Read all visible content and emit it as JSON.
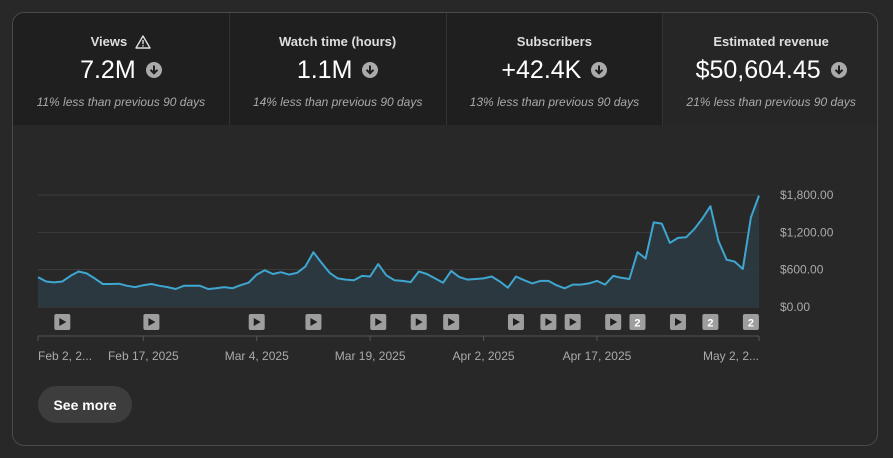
{
  "metrics": [
    {
      "label": "Views",
      "has_warning": true,
      "value": "7.2M",
      "trend": "down",
      "comparison": "11% less than previous 90 days"
    },
    {
      "label": "Watch time (hours)",
      "has_warning": false,
      "value": "1.1M",
      "trend": "down",
      "comparison": "14% less than previous 90 days"
    },
    {
      "label": "Subscribers",
      "has_warning": false,
      "value": "+42.4K",
      "trend": "down",
      "comparison": "13% less than previous 90 days"
    },
    {
      "label": "Estimated revenue",
      "has_warning": false,
      "value": "$50,604.45",
      "trend": "down",
      "comparison": "21% less than previous 90 days"
    }
  ],
  "chart_data": {
    "type": "area",
    "series": [
      {
        "name": "",
        "values": [
          480,
          410,
          395,
          410,
          500,
          570,
          540,
          460,
          370,
          370,
          375,
          340,
          320,
          350,
          370,
          340,
          320,
          290,
          340,
          340,
          340,
          290,
          300,
          320,
          300,
          350,
          390,
          520,
          590,
          530,
          560,
          520,
          550,
          650,
          880,
          710,
          550,
          460,
          440,
          430,
          500,
          490,
          690,
          510,
          430,
          420,
          400,
          570,
          530,
          460,
          390,
          580,
          480,
          440,
          450,
          460,
          490,
          410,
          310,
          490,
          430,
          380,
          420,
          420,
          350,
          300,
          360,
          360,
          380,
          420,
          360,
          500,
          470,
          450,
          880,
          780,
          1360,
          1340,
          1030,
          1110,
          1120,
          1250,
          1420,
          1620,
          1060,
          760,
          730,
          610,
          1440,
          1790
        ]
      }
    ],
    "y_ticks": [
      "$0.00",
      "$600.00",
      "$1,200.00",
      "$1,800.00"
    ],
    "ylim": [
      0,
      1800
    ],
    "x_tick_labels": [
      "Feb 2, 2...",
      "Feb 17, 2025",
      "Mar 4, 2025",
      "Mar 19, 2025",
      "Apr 2, 2025",
      "Apr 17, 2025",
      "May 2, 2..."
    ],
    "grid": true,
    "markers": [
      {
        "kind": "play",
        "index": 3
      },
      {
        "kind": "play",
        "index": 14
      },
      {
        "kind": "play",
        "index": 27
      },
      {
        "kind": "play",
        "index": 34
      },
      {
        "kind": "play",
        "index": 42
      },
      {
        "kind": "play",
        "index": 47
      },
      {
        "kind": "play",
        "index": 51
      },
      {
        "kind": "play",
        "index": 59
      },
      {
        "kind": "play",
        "index": 63
      },
      {
        "kind": "play",
        "index": 66
      },
      {
        "kind": "play",
        "index": 71
      },
      {
        "kind": "count",
        "index": 74,
        "label": "2"
      },
      {
        "kind": "play",
        "index": 79
      },
      {
        "kind": "count",
        "index": 83,
        "label": "2"
      },
      {
        "kind": "count",
        "index": 88,
        "label": "2"
      }
    ],
    "colors": {
      "line": "#3ea6cf",
      "fill": "#2b3a42",
      "grid": "#3c3c3c",
      "axis_text": "#aaaaaa"
    }
  },
  "actions": {
    "see_more": "See more"
  }
}
